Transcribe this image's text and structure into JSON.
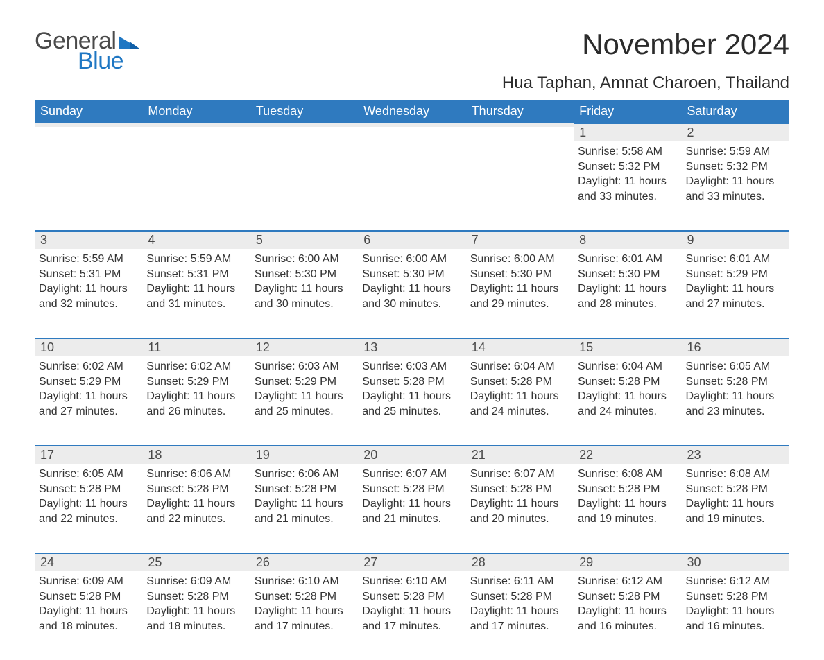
{
  "brand": {
    "part1": "General",
    "part2": "Blue",
    "color1": "#4a4a4a",
    "color2": "#1f77c3"
  },
  "title": "November 2024",
  "location": "Hua Taphan, Amnat Charoen, Thailand",
  "colors": {
    "header_bg": "#2f7abf",
    "header_text": "#ffffff",
    "daynum_bg": "#ececec",
    "daynum_border": "#2f7abf",
    "body_text": "#333333",
    "page_bg": "#ffffff"
  },
  "typography": {
    "title_fontsize": 42,
    "location_fontsize": 24,
    "header_fontsize": 18,
    "daynum_fontsize": 18,
    "data_fontsize": 16
  },
  "weekdays": [
    "Sunday",
    "Monday",
    "Tuesday",
    "Wednesday",
    "Thursday",
    "Friday",
    "Saturday"
  ],
  "weeks": [
    [
      null,
      null,
      null,
      null,
      null,
      {
        "n": "1",
        "sr": "Sunrise: 5:58 AM",
        "ss": "Sunset: 5:32 PM",
        "dl": "Daylight: 11 hours and 33 minutes."
      },
      {
        "n": "2",
        "sr": "Sunrise: 5:59 AM",
        "ss": "Sunset: 5:32 PM",
        "dl": "Daylight: 11 hours and 33 minutes."
      }
    ],
    [
      {
        "n": "3",
        "sr": "Sunrise: 5:59 AM",
        "ss": "Sunset: 5:31 PM",
        "dl": "Daylight: 11 hours and 32 minutes."
      },
      {
        "n": "4",
        "sr": "Sunrise: 5:59 AM",
        "ss": "Sunset: 5:31 PM",
        "dl": "Daylight: 11 hours and 31 minutes."
      },
      {
        "n": "5",
        "sr": "Sunrise: 6:00 AM",
        "ss": "Sunset: 5:30 PM",
        "dl": "Daylight: 11 hours and 30 minutes."
      },
      {
        "n": "6",
        "sr": "Sunrise: 6:00 AM",
        "ss": "Sunset: 5:30 PM",
        "dl": "Daylight: 11 hours and 30 minutes."
      },
      {
        "n": "7",
        "sr": "Sunrise: 6:00 AM",
        "ss": "Sunset: 5:30 PM",
        "dl": "Daylight: 11 hours and 29 minutes."
      },
      {
        "n": "8",
        "sr": "Sunrise: 6:01 AM",
        "ss": "Sunset: 5:30 PM",
        "dl": "Daylight: 11 hours and 28 minutes."
      },
      {
        "n": "9",
        "sr": "Sunrise: 6:01 AM",
        "ss": "Sunset: 5:29 PM",
        "dl": "Daylight: 11 hours and 27 minutes."
      }
    ],
    [
      {
        "n": "10",
        "sr": "Sunrise: 6:02 AM",
        "ss": "Sunset: 5:29 PM",
        "dl": "Daylight: 11 hours and 27 minutes."
      },
      {
        "n": "11",
        "sr": "Sunrise: 6:02 AM",
        "ss": "Sunset: 5:29 PM",
        "dl": "Daylight: 11 hours and 26 minutes."
      },
      {
        "n": "12",
        "sr": "Sunrise: 6:03 AM",
        "ss": "Sunset: 5:29 PM",
        "dl": "Daylight: 11 hours and 25 minutes."
      },
      {
        "n": "13",
        "sr": "Sunrise: 6:03 AM",
        "ss": "Sunset: 5:28 PM",
        "dl": "Daylight: 11 hours and 25 minutes."
      },
      {
        "n": "14",
        "sr": "Sunrise: 6:04 AM",
        "ss": "Sunset: 5:28 PM",
        "dl": "Daylight: 11 hours and 24 minutes."
      },
      {
        "n": "15",
        "sr": "Sunrise: 6:04 AM",
        "ss": "Sunset: 5:28 PM",
        "dl": "Daylight: 11 hours and 24 minutes."
      },
      {
        "n": "16",
        "sr": "Sunrise: 6:05 AM",
        "ss": "Sunset: 5:28 PM",
        "dl": "Daylight: 11 hours and 23 minutes."
      }
    ],
    [
      {
        "n": "17",
        "sr": "Sunrise: 6:05 AM",
        "ss": "Sunset: 5:28 PM",
        "dl": "Daylight: 11 hours and 22 minutes."
      },
      {
        "n": "18",
        "sr": "Sunrise: 6:06 AM",
        "ss": "Sunset: 5:28 PM",
        "dl": "Daylight: 11 hours and 22 minutes."
      },
      {
        "n": "19",
        "sr": "Sunrise: 6:06 AM",
        "ss": "Sunset: 5:28 PM",
        "dl": "Daylight: 11 hours and 21 minutes."
      },
      {
        "n": "20",
        "sr": "Sunrise: 6:07 AM",
        "ss": "Sunset: 5:28 PM",
        "dl": "Daylight: 11 hours and 21 minutes."
      },
      {
        "n": "21",
        "sr": "Sunrise: 6:07 AM",
        "ss": "Sunset: 5:28 PM",
        "dl": "Daylight: 11 hours and 20 minutes."
      },
      {
        "n": "22",
        "sr": "Sunrise: 6:08 AM",
        "ss": "Sunset: 5:28 PM",
        "dl": "Daylight: 11 hours and 19 minutes."
      },
      {
        "n": "23",
        "sr": "Sunrise: 6:08 AM",
        "ss": "Sunset: 5:28 PM",
        "dl": "Daylight: 11 hours and 19 minutes."
      }
    ],
    [
      {
        "n": "24",
        "sr": "Sunrise: 6:09 AM",
        "ss": "Sunset: 5:28 PM",
        "dl": "Daylight: 11 hours and 18 minutes."
      },
      {
        "n": "25",
        "sr": "Sunrise: 6:09 AM",
        "ss": "Sunset: 5:28 PM",
        "dl": "Daylight: 11 hours and 18 minutes."
      },
      {
        "n": "26",
        "sr": "Sunrise: 6:10 AM",
        "ss": "Sunset: 5:28 PM",
        "dl": "Daylight: 11 hours and 17 minutes."
      },
      {
        "n": "27",
        "sr": "Sunrise: 6:10 AM",
        "ss": "Sunset: 5:28 PM",
        "dl": "Daylight: 11 hours and 17 minutes."
      },
      {
        "n": "28",
        "sr": "Sunrise: 6:11 AM",
        "ss": "Sunset: 5:28 PM",
        "dl": "Daylight: 11 hours and 17 minutes."
      },
      {
        "n": "29",
        "sr": "Sunrise: 6:12 AM",
        "ss": "Sunset: 5:28 PM",
        "dl": "Daylight: 11 hours and 16 minutes."
      },
      {
        "n": "30",
        "sr": "Sunrise: 6:12 AM",
        "ss": "Sunset: 5:28 PM",
        "dl": "Daylight: 11 hours and 16 minutes."
      }
    ]
  ]
}
